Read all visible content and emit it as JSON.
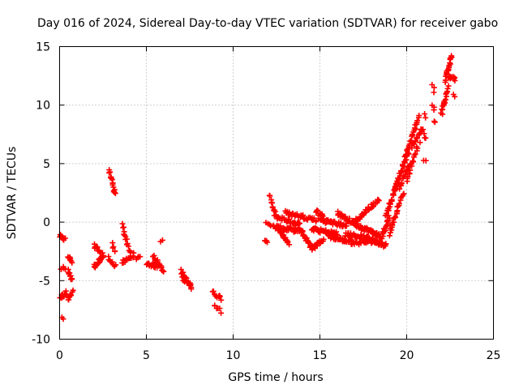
{
  "chart_data": {
    "type": "scatter",
    "title": "Day 016 of 2024, Sidereal Day-to-day VTEC variation (SDTVAR) for receiver gabo",
    "xlabel": "GPS time / hours",
    "ylabel": "SDTVAR / TECUs",
    "xlim": [
      0,
      25
    ],
    "ylim": [
      -10,
      15
    ],
    "xticks": [
      0,
      5,
      10,
      15,
      20,
      25
    ],
    "yticks": [
      -10,
      -5,
      0,
      5,
      10,
      15
    ],
    "grid": true,
    "marker": "+",
    "color": "#ff0000",
    "clusters": [
      {
        "x0": 0.0,
        "y0": -1.2,
        "x1": 0.3,
        "y1": -1.5,
        "n": 10
      },
      {
        "x0": 0.0,
        "y0": -4.0,
        "x1": 0.3,
        "y1": -3.9,
        "n": 6
      },
      {
        "x0": 0.0,
        "y0": -6.5,
        "x1": 0.4,
        "y1": -6.0,
        "n": 14
      },
      {
        "x0": 0.15,
        "y0": -8.0,
        "x1": 0.2,
        "y1": -8.1,
        "n": 2
      },
      {
        "x0": 0.5,
        "y0": -2.9,
        "x1": 0.7,
        "y1": -3.4,
        "n": 8
      },
      {
        "x0": 0.5,
        "y0": -4.2,
        "x1": 0.7,
        "y1": -5.0,
        "n": 10
      },
      {
        "x0": 0.5,
        "y0": -6.7,
        "x1": 0.75,
        "y1": -6.0,
        "n": 10
      },
      {
        "x0": 2.0,
        "y0": -2.0,
        "x1": 2.5,
        "y1": -2.8,
        "n": 16
      },
      {
        "x0": 2.0,
        "y0": -3.8,
        "x1": 2.5,
        "y1": -3.0,
        "n": 18
      },
      {
        "x0": 2.8,
        "y0": -3.0,
        "x1": 3.2,
        "y1": -3.8,
        "n": 10
      },
      {
        "x0": 2.85,
        "y0": 4.5,
        "x1": 3.2,
        "y1": 2.3,
        "n": 18
      },
      {
        "x0": 3.05,
        "y0": -1.9,
        "x1": 3.2,
        "y1": -2.6,
        "n": 5
      },
      {
        "x0": 3.6,
        "y0": -0.2,
        "x1": 4.1,
        "y1": -2.8,
        "n": 16
      },
      {
        "x0": 3.6,
        "y0": -3.5,
        "x1": 4.3,
        "y1": -2.8,
        "n": 16
      },
      {
        "x0": 4.4,
        "y0": -3.2,
        "x1": 4.6,
        "y1": -3.0,
        "n": 4
      },
      {
        "x0": 5.0,
        "y0": -3.5,
        "x1": 5.6,
        "y1": -3.8,
        "n": 16
      },
      {
        "x0": 5.4,
        "y0": -2.8,
        "x1": 6.0,
        "y1": -4.2,
        "n": 18
      },
      {
        "x0": 5.85,
        "y0": -1.5,
        "x1": 5.9,
        "y1": -1.4,
        "n": 2
      },
      {
        "x0": 7.0,
        "y0": -4.2,
        "x1": 7.6,
        "y1": -5.7,
        "n": 24
      },
      {
        "x0": 7.1,
        "y0": -4.8,
        "x1": 7.5,
        "y1": -5.2,
        "n": 10
      },
      {
        "x0": 8.8,
        "y0": -6.0,
        "x1": 9.3,
        "y1": -6.5,
        "n": 10
      },
      {
        "x0": 8.9,
        "y0": -7.0,
        "x1": 9.3,
        "y1": -7.6,
        "n": 6
      },
      {
        "x0": 11.8,
        "y0": -1.4,
        "x1": 12.0,
        "y1": -1.6,
        "n": 4
      },
      {
        "x0": 11.9,
        "y0": -0.2,
        "x1": 12.2,
        "y1": -0.4,
        "n": 4
      },
      {
        "x0": 12.1,
        "y0": 2.3,
        "x1": 12.4,
        "y1": 0.8,
        "n": 10
      },
      {
        "x0": 12.3,
        "y0": -0.4,
        "x1": 14.0,
        "y1": -0.8,
        "n": 45
      },
      {
        "x0": 12.4,
        "y0": 0.5,
        "x1": 13.8,
        "y1": -0.2,
        "n": 35
      },
      {
        "x0": 12.6,
        "y0": -0.5,
        "x1": 13.2,
        "y1": -1.8,
        "n": 20
      },
      {
        "x0": 13.0,
        "y0": 0.8,
        "x1": 14.8,
        "y1": 0.2,
        "n": 35
      },
      {
        "x0": 14.0,
        "y0": -1.0,
        "x1": 14.6,
        "y1": -2.3,
        "n": 22
      },
      {
        "x0": 14.6,
        "y0": -2.2,
        "x1": 15.2,
        "y1": -1.5,
        "n": 18
      },
      {
        "x0": 14.8,
        "y0": 1.0,
        "x1": 15.4,
        "y1": 0.0,
        "n": 18
      },
      {
        "x0": 14.5,
        "y0": -0.6,
        "x1": 16.0,
        "y1": -1.0,
        "n": 40
      },
      {
        "x0": 15.0,
        "y0": 0.2,
        "x1": 16.5,
        "y1": -0.3,
        "n": 40
      },
      {
        "x0": 15.5,
        "y0": -1.2,
        "x1": 17.0,
        "y1": -1.8,
        "n": 40
      },
      {
        "x0": 16.0,
        "y0": 0.8,
        "x1": 17.5,
        "y1": -0.6,
        "n": 40
      },
      {
        "x0": 16.5,
        "y0": -1.0,
        "x1": 17.8,
        "y1": -1.4,
        "n": 35
      },
      {
        "x0": 17.0,
        "y0": 0.0,
        "x1": 18.4,
        "y1": 2.0,
        "n": 30
      },
      {
        "x0": 17.5,
        "y0": -0.5,
        "x1": 18.5,
        "y1": -1.2,
        "n": 30
      },
      {
        "x0": 17.0,
        "y0": -1.8,
        "x1": 18.2,
        "y1": -1.6,
        "n": 25
      },
      {
        "x0": 18.0,
        "y0": -1.5,
        "x1": 18.8,
        "y1": -2.0,
        "n": 25
      },
      {
        "x0": 18.4,
        "y0": -2.0,
        "x1": 19.0,
        "y1": 0.5,
        "n": 25
      },
      {
        "x0": 18.8,
        "y0": 0.5,
        "x1": 19.5,
        "y1": 3.5,
        "n": 30
      },
      {
        "x0": 19.0,
        "y0": -1.0,
        "x1": 19.8,
        "y1": 2.5,
        "n": 25
      },
      {
        "x0": 19.3,
        "y0": 2.8,
        "x1": 20.1,
        "y1": 6.0,
        "n": 30
      },
      {
        "x0": 19.6,
        "y0": 3.0,
        "x1": 20.2,
        "y1": 5.0,
        "n": 18
      },
      {
        "x0": 19.9,
        "y0": 5.5,
        "x1": 20.7,
        "y1": 9.0,
        "n": 28
      },
      {
        "x0": 20.0,
        "y0": 3.5,
        "x1": 20.6,
        "y1": 6.2,
        "n": 15
      },
      {
        "x0": 20.3,
        "y0": 6.5,
        "x1": 20.9,
        "y1": 8.0,
        "n": 15
      },
      {
        "x0": 20.6,
        "y0": 6.5,
        "x1": 20.8,
        "y1": 6.7,
        "n": 2
      },
      {
        "x0": 20.9,
        "y0": 8.0,
        "x1": 21.1,
        "y1": 7.0,
        "n": 4
      },
      {
        "x0": 21.0,
        "y0": 9.2,
        "x1": 21.1,
        "y1": 9.0,
        "n": 2
      },
      {
        "x0": 21.0,
        "y0": 5.3,
        "x1": 21.1,
        "y1": 5.1,
        "n": 2
      },
      {
        "x0": 21.5,
        "y0": 11.7,
        "x1": 21.6,
        "y1": 11.2,
        "n": 3
      },
      {
        "x0": 21.5,
        "y0": 10.0,
        "x1": 21.6,
        "y1": 9.5,
        "n": 3
      },
      {
        "x0": 21.6,
        "y0": 8.6,
        "x1": 21.65,
        "y1": 8.4,
        "n": 2
      },
      {
        "x0": 22.0,
        "y0": 9.2,
        "x1": 22.4,
        "y1": 11.5,
        "n": 15
      },
      {
        "x0": 22.1,
        "y0": 10.0,
        "x1": 22.2,
        "y1": 10.2,
        "n": 3
      },
      {
        "x0": 22.2,
        "y0": 12.0,
        "x1": 22.6,
        "y1": 14.3,
        "n": 22
      },
      {
        "x0": 22.4,
        "y0": 12.5,
        "x1": 22.8,
        "y1": 12.2,
        "n": 10
      },
      {
        "x0": 22.7,
        "y0": 10.8,
        "x1": 22.8,
        "y1": 10.6,
        "n": 2
      }
    ]
  }
}
